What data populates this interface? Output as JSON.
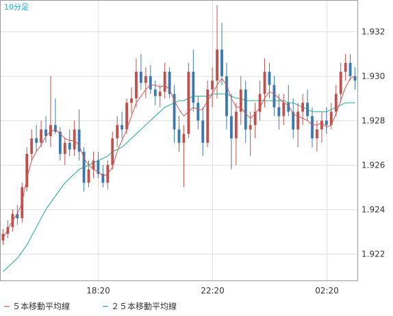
{
  "interval_label": "10分足",
  "legend": [
    {
      "label": "５本移動平均線",
      "color": "#d9534f"
    },
    {
      "label": "２５本移動平均線",
      "color": "#22aa88"
    }
  ],
  "colors": {
    "up": "#c0504d",
    "down": "#3a78b0",
    "grid": "#e0e0e0",
    "axis": "#999999"
  },
  "chart_data": {
    "type": "candlestick",
    "title": "",
    "xlabel": "",
    "ylabel": "",
    "ylim": [
      1.9208,
      1.9334
    ],
    "yticks": [
      "1.922",
      "1.924",
      "1.926",
      "1.928",
      "1.930",
      "1.932"
    ],
    "xticks": [
      {
        "label": "18:20",
        "index": 20
      },
      {
        "label": "22:20",
        "index": 44
      },
      {
        "label": "02:20",
        "index": 68
      }
    ],
    "grid": true,
    "legend_position": "bottom-left",
    "candles": [
      [
        1.9226,
        1.9231,
        1.9224,
        1.9229
      ],
      [
        1.9229,
        1.9235,
        1.9227,
        1.9232
      ],
      [
        1.9232,
        1.924,
        1.923,
        1.9238
      ],
      [
        1.9238,
        1.9242,
        1.9233,
        1.9236
      ],
      [
        1.9236,
        1.9252,
        1.9234,
        1.925
      ],
      [
        1.925,
        1.9268,
        1.9248,
        1.9265
      ],
      [
        1.9265,
        1.9276,
        1.9262,
        1.9272
      ],
      [
        1.9272,
        1.9278,
        1.9266,
        1.927
      ],
      [
        1.927,
        1.928,
        1.9268,
        1.9276
      ],
      [
        1.9276,
        1.9282,
        1.927,
        1.9273
      ],
      [
        1.9273,
        1.93,
        1.9268,
        1.9278
      ],
      [
        1.9278,
        1.929,
        1.9274,
        1.9275
      ],
      [
        1.9275,
        1.9277,
        1.9262,
        1.9265
      ],
      [
        1.9265,
        1.9272,
        1.926,
        1.927
      ],
      [
        1.927,
        1.9276,
        1.9264,
        1.9267
      ],
      [
        1.9267,
        1.928,
        1.9264,
        1.9276
      ],
      [
        1.9276,
        1.9285,
        1.9262,
        1.9266
      ],
      [
        1.9266,
        1.9268,
        1.9248,
        1.9252
      ],
      [
        1.9252,
        1.9262,
        1.925,
        1.9258
      ],
      [
        1.9258,
        1.9266,
        1.9254,
        1.9262
      ],
      [
        1.9262,
        1.9266,
        1.9254,
        1.9256
      ],
      [
        1.9256,
        1.926,
        1.925,
        1.9252
      ],
      [
        1.9252,
        1.9262,
        1.9249,
        1.926
      ],
      [
        1.926,
        1.9275,
        1.9258,
        1.9272
      ],
      [
        1.9272,
        1.9282,
        1.9268,
        1.9278
      ],
      [
        1.9278,
        1.9284,
        1.9272,
        1.9276
      ],
      [
        1.9276,
        1.929,
        1.9274,
        1.9288
      ],
      [
        1.9288,
        1.9295,
        1.9283,
        1.929
      ],
      [
        1.929,
        1.9308,
        1.9286,
        1.9302
      ],
      [
        1.9302,
        1.931,
        1.9294,
        1.9297
      ],
      [
        1.9297,
        1.9304,
        1.929,
        1.93
      ],
      [
        1.93,
        1.9305,
        1.9292,
        1.9294
      ],
      [
        1.9294,
        1.9298,
        1.9287,
        1.9291
      ],
      [
        1.9291,
        1.9296,
        1.9286,
        1.9293
      ],
      [
        1.9293,
        1.9306,
        1.929,
        1.9302
      ],
      [
        1.9302,
        1.9304,
        1.929,
        1.9292
      ],
      [
        1.9292,
        1.9296,
        1.927,
        1.9276
      ],
      [
        1.9276,
        1.9282,
        1.9266,
        1.927
      ],
      [
        1.927,
        1.9278,
        1.925,
        1.9274
      ],
      [
        1.9274,
        1.9306,
        1.9272,
        1.9302
      ],
      [
        1.9302,
        1.9312,
        1.9284,
        1.9288
      ],
      [
        1.9288,
        1.9291,
        1.9276,
        1.928
      ],
      [
        1.928,
        1.9286,
        1.9264,
        1.927
      ],
      [
        1.927,
        1.9298,
        1.9268,
        1.9294
      ],
      [
        1.9294,
        1.9304,
        1.9286,
        1.9298
      ],
      [
        1.9298,
        1.9332,
        1.929,
        1.9312
      ],
      [
        1.9312,
        1.9324,
        1.9296,
        1.93
      ],
      [
        1.93,
        1.9306,
        1.9276,
        1.9282
      ],
      [
        1.9282,
        1.9292,
        1.9258,
        1.9272
      ],
      [
        1.9272,
        1.9288,
        1.926,
        1.9284
      ],
      [
        1.9284,
        1.93,
        1.9278,
        1.9294
      ],
      [
        1.9294,
        1.9298,
        1.927,
        1.9276
      ],
      [
        1.9276,
        1.9284,
        1.9264,
        1.9278
      ],
      [
        1.9278,
        1.9288,
        1.9272,
        1.9284
      ],
      [
        1.9284,
        1.9298,
        1.928,
        1.9292
      ],
      [
        1.9292,
        1.9308,
        1.9286,
        1.9302
      ],
      [
        1.9302,
        1.9306,
        1.929,
        1.9296
      ],
      [
        1.9296,
        1.93,
        1.9282,
        1.9286
      ],
      [
        1.9286,
        1.9292,
        1.9276,
        1.9282
      ],
      [
        1.9282,
        1.9292,
        1.9278,
        1.9288
      ],
      [
        1.9288,
        1.9296,
        1.9282,
        1.9284
      ],
      [
        1.9284,
        1.929,
        1.9272,
        1.9276
      ],
      [
        1.9276,
        1.9288,
        1.9268,
        1.9284
      ],
      [
        1.9284,
        1.9292,
        1.9278,
        1.9288
      ],
      [
        1.9288,
        1.9294,
        1.928,
        1.9282
      ],
      [
        1.9282,
        1.9286,
        1.9268,
        1.9272
      ],
      [
        1.9272,
        1.928,
        1.9266,
        1.9276
      ],
      [
        1.9276,
        1.9284,
        1.927,
        1.928
      ],
      [
        1.928,
        1.9286,
        1.9274,
        1.9278
      ],
      [
        1.9278,
        1.9288,
        1.9276,
        1.9284
      ],
      [
        1.9284,
        1.9296,
        1.9282,
        1.9292
      ],
      [
        1.9292,
        1.9306,
        1.9288,
        1.9302
      ],
      [
        1.9302,
        1.931,
        1.9298,
        1.9306
      ],
      [
        1.9306,
        1.931,
        1.9298,
        1.93
      ],
      [
        1.93,
        1.9304,
        1.9294,
        1.9298
      ]
    ],
    "series": [
      {
        "name": "５本移動平均線",
        "color": "#d9534f",
        "values": [
          1.9227,
          1.9231,
          1.9235,
          1.9238,
          1.9243,
          1.9254,
          1.9262,
          1.9266,
          1.9269,
          1.9273,
          1.9275,
          1.9276,
          1.9274,
          1.9272,
          1.9271,
          1.9271,
          1.9269,
          1.9263,
          1.926,
          1.9258,
          1.9257,
          1.9255,
          1.9256,
          1.9259,
          1.9266,
          1.9271,
          1.9276,
          1.9282,
          1.9288,
          1.9291,
          1.9294,
          1.9296,
          1.9296,
          1.9295,
          1.9296,
          1.9294,
          1.9289,
          1.9285,
          1.9282,
          1.9284,
          1.9286,
          1.9285,
          1.9285,
          1.9289,
          1.9292,
          1.9296,
          1.9299,
          1.9296,
          1.929,
          1.9286,
          1.9286,
          1.9283,
          1.9281,
          1.9283,
          1.9286,
          1.929,
          1.9293,
          1.9292,
          1.929,
          1.9288,
          1.9287,
          1.9283,
          1.9282,
          1.9281,
          1.928,
          1.9278,
          1.9278,
          1.9279,
          1.9277,
          1.9278,
          1.9283,
          1.9289,
          1.9295,
          1.9299,
          1.93
        ]
      },
      {
        "name": "２５本移動平均線",
        "color": "#22aa88",
        "values": [
          1.9212,
          1.9214,
          1.9216,
          1.9218,
          1.9221,
          1.9224,
          1.9228,
          1.9232,
          1.9236,
          1.924,
          1.9243,
          1.9246,
          1.9249,
          1.9252,
          1.9254,
          1.9256,
          1.9258,
          1.9259,
          1.926,
          1.9261,
          1.9262,
          1.9263,
          1.9264,
          1.9266,
          1.9267,
          1.9268,
          1.927,
          1.9272,
          1.9274,
          1.9276,
          1.9278,
          1.928,
          1.9282,
          1.9284,
          1.9286,
          1.9287,
          1.9288,
          1.9289,
          1.9289,
          1.929,
          1.9291,
          1.9291,
          1.9291,
          1.9291,
          1.9292,
          1.9292,
          1.9292,
          1.9292,
          1.9291,
          1.929,
          1.929,
          1.9289,
          1.9289,
          1.9289,
          1.9289,
          1.9289,
          1.9289,
          1.9289,
          1.9289,
          1.9289,
          1.9288,
          1.9288,
          1.9287,
          1.9286,
          1.9285,
          1.9284,
          1.9284,
          1.9284,
          1.9284,
          1.9285,
          1.9286,
          1.9287,
          1.9288,
          1.9288,
          1.9288
        ]
      }
    ]
  }
}
